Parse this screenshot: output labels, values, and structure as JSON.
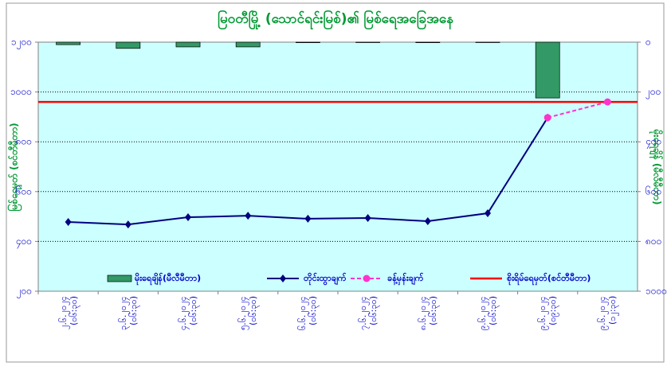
{
  "chart_data": {
    "type": "combo",
    "title": "မြဝတီမြို့ (သောင်ရင်းမြစ်)၏ မြစ်ရေအခြေအနေ",
    "y_label": "မြစ်ရေမှတ် (စင်တီမီတာ)",
    "y2_label": "မိုးရေချိန် (မီလီမီတာ)",
    "categories": [
      "၂.၆.၂၀၂၄ (၀၆:၃၀)",
      "၃.၆.၂၀၂၄ (၀၆:၃၀)",
      "၄.၆.၂၀၂၄ (၀၆:၃၀)",
      "၅.၆.၂၀၂၄ (၀၆:၃၀)",
      "၆.၆.၂၀၂၄ (၀၆:၃၀)",
      "၇.၆.၂၀၂၄ (၀၆:၃၀)",
      "၈.၆.၂၀၂၄ (၀၆:၃၀)",
      "၉.၆.၂၀၂၄ (၀၆:၃၀)",
      "၉.၆.၂၀၂၄ (၀၉:၃၀)",
      "၉.၆.၂၀၂၄ (၁၂:၃၀)"
    ],
    "ylim": [
      200,
      1200
    ],
    "yticks": [
      {
        "value": 200,
        "label": "၂၀၀"
      },
      {
        "value": 400,
        "label": "၄၀၀"
      },
      {
        "value": 600,
        "label": "၆၀၀"
      },
      {
        "value": 800,
        "label": "၈၀၀"
      },
      {
        "value": 1000,
        "label": "၁၀၀၀"
      },
      {
        "value": 1200,
        "label": "၁၂၀၀"
      }
    ],
    "y2lim": [
      1000,
      0
    ],
    "y2ticks": [
      {
        "value": 0,
        "label": "၀"
      },
      {
        "value": 200,
        "label": "၂၀၀"
      },
      {
        "value": 400,
        "label": "၄၀၀"
      },
      {
        "value": 600,
        "label": "၆၀၀"
      },
      {
        "value": 800,
        "label": "၈၀၀"
      },
      {
        "value": 1000,
        "label": "၁၀၀၀"
      }
    ],
    "grid": true,
    "series": [
      {
        "name": "မိုးရေချိန်(မီလီမီတာ)",
        "type": "bar",
        "axis": "y2",
        "color": "#339966",
        "values": [
          10,
          25,
          19,
          19,
          2,
          1,
          2,
          0,
          224,
          null
        ]
      },
      {
        "name": "တိုင်းထွာချက်",
        "type": "line",
        "color": "#000080",
        "marker": "diamond",
        "values": [
          478,
          468,
          497,
          503,
          491,
          494,
          481,
          513,
          897,
          null
        ]
      },
      {
        "name": "ခန့်မှန်းချက်",
        "type": "line",
        "color": "#ff33cc",
        "dashed": true,
        "marker": "circle",
        "values": [
          null,
          null,
          null,
          null,
          null,
          null,
          null,
          null,
          897,
          960
        ]
      }
    ],
    "threshold": {
      "name": "စိုးရိမ်ရေမှတ်(စင်တီမီတာ)",
      "value": 960,
      "color": "#ff0000"
    }
  }
}
